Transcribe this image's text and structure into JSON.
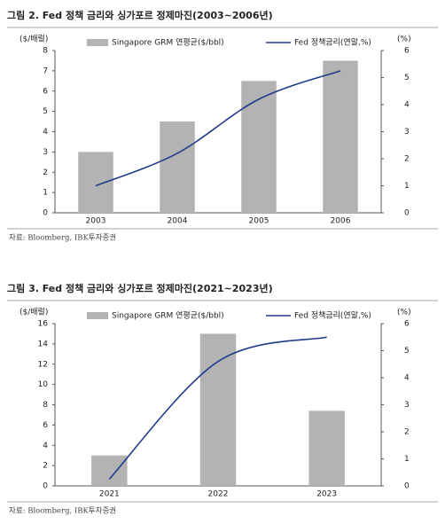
{
  "chart_data": [
    {
      "type": "combo",
      "title": "그림 2. Fed 정책 금리와 싱가포르 정제마진(2003~2006년)",
      "y_label": "($/배럴)",
      "y2_label": "(%)",
      "categories": [
        "2003",
        "2004",
        "2005",
        "2006"
      ],
      "series": [
        {
          "name": "Singapore GRM 연평균($/bbl)",
          "color": "#b3b3b3",
          "type": "bar",
          "values": [
            3.0,
            4.5,
            6.5,
            7.5
          ]
        },
        {
          "name": "Fed 정책금리(연말,%)",
          "color": "#1f3a8a",
          "type": "line",
          "axis": "y2",
          "values": [
            1.0,
            2.2,
            4.2,
            5.25
          ]
        }
      ],
      "ylim": [
        0,
        8
      ],
      "yticks": [
        0,
        1,
        2,
        3,
        4,
        5,
        6,
        7,
        8
      ],
      "y2lim": [
        0,
        6
      ],
      "y2ticks": [
        0,
        1,
        2,
        3,
        4,
        5,
        6
      ],
      "grid": false,
      "source": "자료: Bloomberg, IBK투자증권"
    },
    {
      "type": "combo",
      "title": "그림 3. Fed 정책 금리와 싱가포르 정제마진(2021~2023년)",
      "y_label": "($/배럴)",
      "y2_label": "(%)",
      "categories": [
        "2021",
        "2022",
        "2023"
      ],
      "series": [
        {
          "name": "Singapore GRM 연평균($/bbl)",
          "color": "#b3b3b3",
          "type": "bar",
          "values": [
            3.0,
            15.0,
            7.4
          ]
        },
        {
          "name": "Fed 정책금리(연말,%)",
          "color": "#1f3a8a",
          "type": "line",
          "axis": "y2",
          "values": [
            0.25,
            4.6,
            5.5
          ]
        }
      ],
      "ylim": [
        0,
        16
      ],
      "yticks": [
        0,
        2,
        4,
        6,
        8,
        10,
        12,
        14,
        16
      ],
      "y2lim": [
        0,
        6
      ],
      "y2ticks": [
        0,
        1,
        2,
        3,
        4,
        5,
        6
      ],
      "grid": false,
      "source": "자료: Bloomberg, IBK투자증권"
    }
  ]
}
